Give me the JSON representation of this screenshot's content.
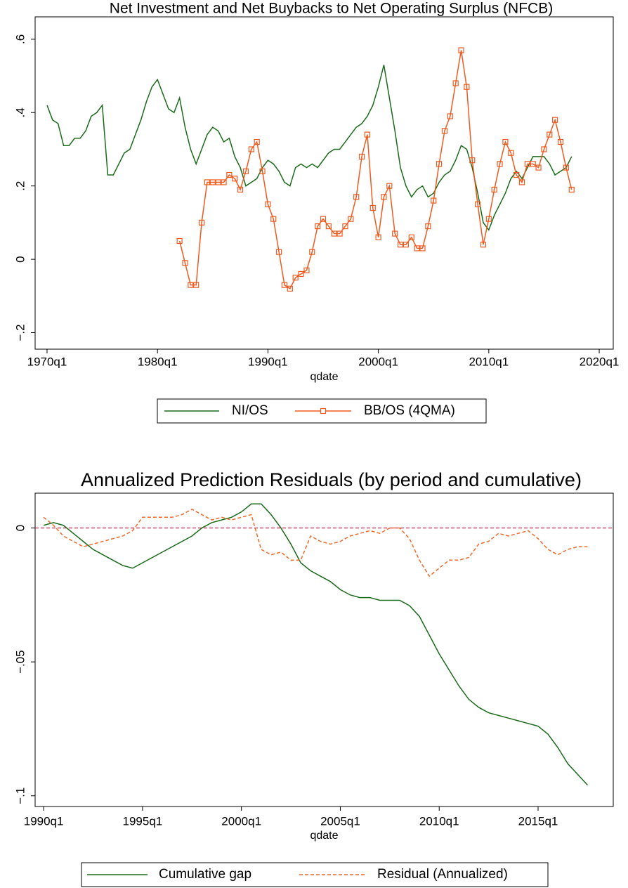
{
  "chart_data": [
    {
      "type": "line",
      "title": "Net Investment and Net Buybacks to Net Operating Surplus (NFCB)",
      "x_label": "qdate",
      "x": [
        1970,
        1970.5,
        1971,
        1971.5,
        1972,
        1972.5,
        1973,
        1973.5,
        1974,
        1974.5,
        1975,
        1975.5,
        1976,
        1976.5,
        1977,
        1977.5,
        1978,
        1978.5,
        1979,
        1979.5,
        1980,
        1980.5,
        1981,
        1981.5,
        1982,
        1982.5,
        1983,
        1983.5,
        1984,
        1984.5,
        1985,
        1985.5,
        1986,
        1986.5,
        1987,
        1987.5,
        1988,
        1988.5,
        1989,
        1989.5,
        1990,
        1990.5,
        1991,
        1991.5,
        1992,
        1992.5,
        1993,
        1993.5,
        1994,
        1994.5,
        1995,
        1995.5,
        1996,
        1996.5,
        1997,
        1997.5,
        1998,
        1998.5,
        1999,
        1999.5,
        2000,
        2000.5,
        2001,
        2001.5,
        2002,
        2002.5,
        2003,
        2003.5,
        2004,
        2004.5,
        2005,
        2005.5,
        2006,
        2006.5,
        2007,
        2007.5,
        2008,
        2008.5,
        2009,
        2009.5,
        2010,
        2010.5,
        2011,
        2011.5,
        2012,
        2012.5,
        2013,
        2013.5,
        2014,
        2014.5,
        2015,
        2015.5,
        2016,
        2016.5,
        2017,
        2017.5
      ],
      "series": [
        {
          "name": "NI/OS",
          "color": "#1a6b1a",
          "values": [
            0.42,
            0.38,
            0.37,
            0.31,
            0.31,
            0.33,
            0.33,
            0.35,
            0.39,
            0.4,
            0.42,
            0.23,
            0.23,
            0.26,
            0.29,
            0.3,
            0.34,
            0.38,
            0.43,
            0.47,
            0.49,
            0.45,
            0.41,
            0.4,
            0.44,
            0.36,
            0.3,
            0.26,
            0.3,
            0.34,
            0.36,
            0.35,
            0.32,
            0.33,
            0.28,
            0.25,
            0.2,
            0.21,
            0.22,
            0.25,
            0.27,
            0.26,
            0.24,
            0.21,
            0.2,
            0.25,
            0.26,
            0.25,
            0.26,
            0.25,
            0.27,
            0.29,
            0.3,
            0.3,
            0.32,
            0.34,
            0.36,
            0.37,
            0.39,
            0.42,
            0.47,
            0.53,
            0.44,
            0.35,
            0.25,
            0.2,
            0.17,
            0.19,
            0.2,
            0.17,
            0.18,
            0.21,
            0.23,
            0.24,
            0.27,
            0.31,
            0.3,
            0.25,
            0.18,
            0.1,
            0.08,
            0.12,
            0.15,
            0.18,
            0.22,
            0.24,
            0.22,
            0.25,
            0.28,
            0.28,
            0.28,
            0.26,
            0.23,
            0.24,
            0.25,
            0.28
          ]
        },
        {
          "name": "BB/OS (4QMA)",
          "color": "#f05a1e",
          "marker": "square",
          "values": [
            null,
            null,
            null,
            null,
            null,
            null,
            null,
            null,
            null,
            null,
            null,
            null,
            null,
            null,
            null,
            null,
            null,
            null,
            null,
            null,
            null,
            null,
            null,
            null,
            0.05,
            -0.01,
            -0.07,
            -0.07,
            0.1,
            0.21,
            0.21,
            0.21,
            0.21,
            0.23,
            0.22,
            0.19,
            0.24,
            0.3,
            0.32,
            0.24,
            0.15,
            0.11,
            0.02,
            -0.07,
            -0.08,
            -0.05,
            -0.04,
            -0.03,
            0.02,
            0.09,
            0.11,
            0.09,
            0.07,
            0.07,
            0.09,
            0.11,
            0.17,
            0.28,
            0.34,
            0.14,
            0.06,
            0.17,
            0.2,
            0.07,
            0.04,
            0.04,
            0.06,
            0.03,
            0.03,
            0.09,
            0.16,
            0.26,
            0.35,
            0.39,
            0.48,
            0.57,
            0.47,
            0.27,
            0.15,
            0.04,
            0.11,
            0.19,
            0.26,
            0.32,
            0.29,
            0.23,
            0.21,
            0.26,
            0.26,
            0.25,
            0.3,
            0.34,
            0.38,
            0.32,
            0.25,
            0.19
          ]
        }
      ],
      "xlim": [
        1968.92,
        2021.27
      ],
      "xticks": [
        {
          "value": 1970,
          "label": "1970q1"
        },
        {
          "value": 1980,
          "label": "1980q1"
        },
        {
          "value": 1990,
          "label": "1990q1"
        },
        {
          "value": 2000,
          "label": "2000q1"
        },
        {
          "value": 2010,
          "label": "2010q1"
        },
        {
          "value": 2020,
          "label": "2020q1"
        }
      ],
      "ylim": [
        -0.245,
        0.661
      ],
      "yticks": [
        {
          "value": -0.2,
          "label": "−.2"
        },
        0,
        {
          "value": 0.2,
          "label": ".2"
        },
        {
          "value": 0.4,
          "label": ".4"
        },
        {
          "value": 0.6,
          "label": ".6"
        }
      ],
      "grid": false,
      "legend": "bottom"
    },
    {
      "type": "line",
      "title": "Annualized Prediction Residuals (by period and cumulative)",
      "x_label": "qdate",
      "x": [
        1990,
        1990.5,
        1991,
        1991.5,
        1992,
        1992.5,
        1993,
        1993.5,
        1994,
        1994.5,
        1995,
        1995.5,
        1996,
        1996.5,
        1997,
        1997.5,
        1998,
        1998.5,
        1999,
        1999.5,
        2000,
        2000.5,
        2001,
        2001.5,
        2002,
        2002.5,
        2003,
        2003.5,
        2004,
        2004.5,
        2005,
        2005.5,
        2006,
        2006.5,
        2007,
        2007.5,
        2008,
        2008.5,
        2009,
        2009.5,
        2010,
        2010.5,
        2011,
        2011.5,
        2012,
        2012.5,
        2013,
        2013.5,
        2014,
        2014.5,
        2015,
        2015.5,
        2016,
        2016.5,
        2017,
        2017.5
      ],
      "series": [
        {
          "name": "Cumulative gap",
          "color": "#1a6b1a",
          "values": [
            0.001,
            0.002,
            0.001,
            -0.002,
            -0.005,
            -0.008,
            -0.01,
            -0.012,
            -0.014,
            -0.015,
            -0.013,
            -0.011,
            -0.009,
            -0.007,
            -0.005,
            -0.003,
            0.0,
            0.002,
            0.003,
            0.004,
            0.006,
            0.009,
            0.009,
            0.005,
            0.0,
            -0.006,
            -0.013,
            -0.016,
            -0.018,
            -0.02,
            -0.023,
            -0.025,
            -0.026,
            -0.026,
            -0.027,
            -0.027,
            -0.027,
            -0.029,
            -0.033,
            -0.04,
            -0.047,
            -0.053,
            -0.059,
            -0.064,
            -0.067,
            -0.069,
            -0.07,
            -0.071,
            -0.072,
            -0.073,
            -0.074,
            -0.077,
            -0.082,
            -0.088,
            -0.092,
            -0.096
          ]
        },
        {
          "name": "Residual (Annualized)",
          "color": "#f06a2a",
          "line_style": "dash",
          "values": [
            0.004,
            0.001,
            -0.003,
            -0.005,
            -0.007,
            -0.006,
            -0.005,
            -0.004,
            -0.003,
            -0.001,
            0.004,
            0.004,
            0.004,
            0.004,
            0.005,
            0.007,
            0.005,
            0.003,
            0.004,
            0.003,
            0.004,
            0.005,
            -0.008,
            -0.01,
            -0.009,
            -0.012,
            -0.012,
            -0.003,
            -0.005,
            -0.006,
            -0.005,
            -0.003,
            -0.002,
            -0.001,
            -0.002,
            0.0,
            0.0,
            -0.004,
            -0.012,
            -0.018,
            -0.015,
            -0.012,
            -0.012,
            -0.011,
            -0.006,
            -0.005,
            -0.002,
            -0.003,
            -0.002,
            -0.001,
            -0.004,
            -0.008,
            -0.01,
            -0.008,
            -0.007,
            -0.007
          ]
        }
      ],
      "xlim": [
        1989.57,
        2018.8
      ],
      "xticks": [
        {
          "value": 1990,
          "label": "1990q1"
        },
        {
          "value": 1995,
          "label": "1995q1"
        },
        {
          "value": 2000,
          "label": "2000q1"
        },
        {
          "value": 2005,
          "label": "2005q1"
        },
        {
          "value": 2010,
          "label": "2010q1"
        },
        {
          "value": 2015,
          "label": "2015q1"
        }
      ],
      "ylim": [
        -0.104,
        0.013
      ],
      "yticks": [
        {
          "value": -0.1,
          "label": "−.1"
        },
        {
          "value": -0.05,
          "label": "−.05"
        },
        0
      ],
      "yline": {
        "value": 0,
        "color": "#c8103c"
      },
      "grid": false,
      "legend": "bottom"
    }
  ]
}
